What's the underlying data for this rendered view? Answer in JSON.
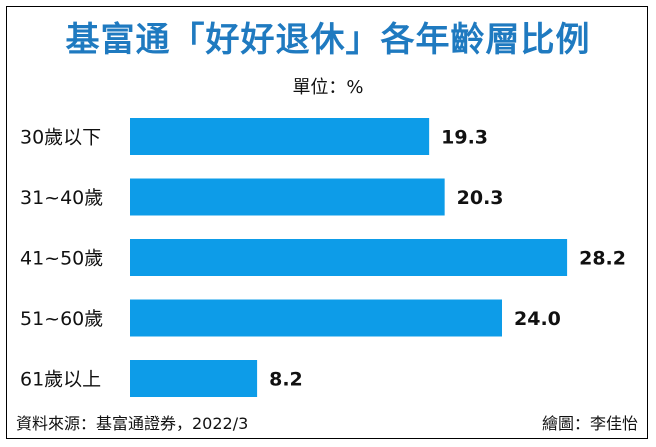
{
  "title": "基富通「好好退休」各年齡層比例",
  "unit": "單位：%",
  "source": "資料來源：基富通證券，2022/3",
  "credit": "繪圖：李佳怡",
  "chart_data": {
    "type": "bar",
    "orientation": "horizontal",
    "categories": [
      "30歲以下",
      "31~40歲",
      "41~50歲",
      "51~60歲",
      "61歲以上"
    ],
    "values": [
      19.3,
      20.3,
      28.2,
      24.0,
      8.2
    ],
    "value_labels": [
      "19.3",
      "20.3",
      "28.2",
      "24.0",
      "8.2"
    ],
    "bar_color": "#0d9ce8",
    "title_color": "#1f7ac0",
    "grid": false,
    "legend": "none"
  }
}
